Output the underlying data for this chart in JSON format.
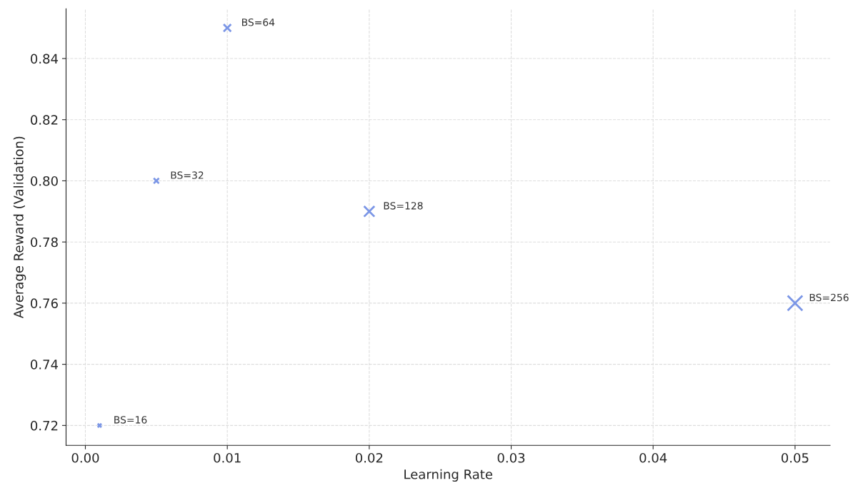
{
  "chart_data": {
    "type": "bubble",
    "xlabel": "Learning Rate",
    "ylabel": "Average Reward (Validation)",
    "x": [
      0.001,
      0.005,
      0.01,
      0.02,
      0.05
    ],
    "series": [
      {
        "color": "#7b96e6",
        "values": [
          0.72,
          0.8,
          0.85,
          0.79,
          0.76
        ],
        "sizes": [
          0.0625,
          0.125,
          0.25,
          0.5,
          1
        ]
      }
    ],
    "annotations": [
      {
        "text": "BS=16",
        "x": 0.001,
        "y": 0.72
      },
      {
        "text": "BS=32",
        "x": 0.005,
        "y": 0.8
      },
      {
        "text": "BS=64",
        "x": 0.01,
        "y": 0.85
      },
      {
        "text": "BS=128",
        "x": 0.02,
        "y": 0.79
      },
      {
        "text": "BS=256",
        "x": 0.05,
        "y": 0.76
      }
    ],
    "xlim": [
      -0.00136,
      0.05247
    ],
    "ylim": [
      0.7135,
      0.8563
    ],
    "xticks": [
      {
        "value": 0,
        "label": "0.00"
      },
      {
        "value": 0.01,
        "label": "0.01"
      },
      {
        "value": 0.02,
        "label": "0.02"
      },
      {
        "value": 0.03,
        "label": "0.03"
      },
      {
        "value": 0.04,
        "label": "0.04"
      },
      {
        "value": 0.05,
        "label": "0.05"
      }
    ],
    "yticks": [
      {
        "value": 0.72,
        "label": "0.72"
      },
      {
        "value": 0.74,
        "label": "0.74"
      },
      {
        "value": 0.76,
        "label": "0.76"
      },
      {
        "value": 0.78,
        "label": "0.78"
      },
      {
        "value": 0.8,
        "label": "0.80"
      },
      {
        "value": 0.82,
        "label": "0.82"
      },
      {
        "value": 0.84,
        "label": "0.84"
      }
    ],
    "grid": true,
    "marker": "cross",
    "legend": false
  }
}
